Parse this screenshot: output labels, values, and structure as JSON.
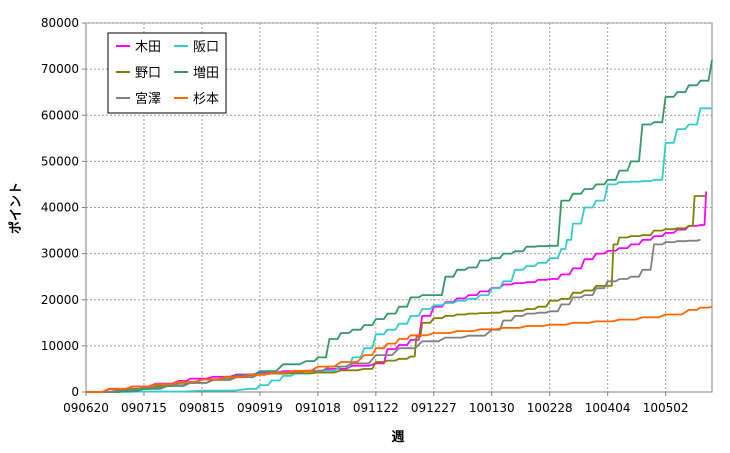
{
  "chart_data": {
    "type": "line",
    "title": "",
    "xlabel": "週",
    "ylabel": "ポイント",
    "ylim": [
      0,
      80000
    ],
    "yticks": [
      0,
      10000,
      20000,
      30000,
      40000,
      50000,
      60000,
      70000,
      80000
    ],
    "xlim": [
      0,
      54
    ],
    "x_tick_labels": [
      "090620",
      "090715",
      "090815",
      "090919",
      "091018",
      "091122",
      "091227",
      "100130",
      "100228",
      "100404",
      "100502"
    ],
    "x_tick_positions": [
      0,
      5,
      10,
      15,
      20,
      25,
      30,
      35,
      40,
      45,
      50
    ],
    "grid": true,
    "legend_position": "top-left",
    "series": [
      {
        "name": "木田",
        "color": "#ff00ff",
        "points": [
          [
            0,
            0
          ],
          [
            2,
            600
          ],
          [
            4,
            1200
          ],
          [
            6,
            1800
          ],
          [
            8,
            2400
          ],
          [
            9,
            2900
          ],
          [
            11,
            3300
          ],
          [
            13,
            3800
          ],
          [
            15,
            4200
          ],
          [
            17,
            4500
          ],
          [
            19,
            4600
          ],
          [
            21,
            5000
          ],
          [
            23,
            5700
          ],
          [
            25,
            6200
          ],
          [
            26,
            9300
          ],
          [
            27,
            10200
          ],
          [
            28,
            11300
          ],
          [
            29,
            16500
          ],
          [
            30,
            18500
          ],
          [
            31,
            19500
          ],
          [
            32,
            20300
          ],
          [
            33,
            21000
          ],
          [
            34,
            21800
          ],
          [
            35,
            22600
          ],
          [
            36,
            23300
          ],
          [
            37,
            23600
          ],
          [
            38,
            23800
          ],
          [
            39,
            24300
          ],
          [
            40,
            24500
          ],
          [
            41,
            25500
          ],
          [
            42,
            26800
          ],
          [
            43,
            28800
          ],
          [
            44,
            30000
          ],
          [
            45,
            30600
          ],
          [
            46,
            31200
          ],
          [
            47,
            32000
          ],
          [
            48,
            33000
          ],
          [
            49,
            33800
          ],
          [
            50,
            34500
          ],
          [
            51,
            35200
          ],
          [
            52,
            36000
          ],
          [
            53,
            36200
          ],
          [
            53.5,
            43500
          ]
        ]
      },
      {
        "name": "阪口",
        "color": "#33cccc",
        "points": [
          [
            0,
            0
          ],
          [
            5,
            100
          ],
          [
            10,
            300
          ],
          [
            14,
            700
          ],
          [
            15,
            1500
          ],
          [
            16,
            2500
          ],
          [
            17,
            3500
          ],
          [
            18,
            4000
          ],
          [
            20,
            4600
          ],
          [
            22,
            5500
          ],
          [
            23,
            7500
          ],
          [
            24,
            9500
          ],
          [
            25,
            12500
          ],
          [
            26,
            13500
          ],
          [
            27,
            14800
          ],
          [
            28,
            16500
          ],
          [
            29,
            18000
          ],
          [
            30,
            18800
          ],
          [
            31,
            19300
          ],
          [
            32,
            19800
          ],
          [
            33,
            20200
          ],
          [
            34,
            21000
          ],
          [
            35,
            22500
          ],
          [
            36,
            24000
          ],
          [
            37,
            26500
          ],
          [
            38,
            27300
          ],
          [
            39,
            28000
          ],
          [
            40,
            29000
          ],
          [
            41,
            31000
          ],
          [
            41.5,
            33000
          ],
          [
            42,
            36500
          ],
          [
            43,
            40000
          ],
          [
            44,
            41500
          ],
          [
            45,
            45000
          ],
          [
            46,
            45500
          ],
          [
            47,
            45600
          ],
          [
            48,
            45700
          ],
          [
            49,
            46000
          ],
          [
            50,
            54000
          ],
          [
            51,
            57000
          ],
          [
            52,
            58000
          ],
          [
            53,
            61500
          ],
          [
            54,
            61500
          ]
        ]
      },
      {
        "name": "野口",
        "color": "#808000",
        "points": [
          [
            0,
            0
          ],
          [
            4,
            700
          ],
          [
            6,
            1300
          ],
          [
            8,
            2000
          ],
          [
            10,
            2700
          ],
          [
            12,
            3300
          ],
          [
            14,
            3800
          ],
          [
            16,
            4000
          ],
          [
            18,
            4100
          ],
          [
            20,
            4200
          ],
          [
            22,
            4700
          ],
          [
            24,
            5000
          ],
          [
            25,
            6500
          ],
          [
            26,
            6800
          ],
          [
            27,
            7200
          ],
          [
            28,
            7700
          ],
          [
            28.5,
            12000
          ],
          [
            29,
            15000
          ],
          [
            30,
            16000
          ],
          [
            31,
            16500
          ],
          [
            32,
            16800
          ],
          [
            33,
            17000
          ],
          [
            34,
            17100
          ],
          [
            35,
            17200
          ],
          [
            36,
            17500
          ],
          [
            37,
            17600
          ],
          [
            38,
            18000
          ],
          [
            39,
            18500
          ],
          [
            40,
            19800
          ],
          [
            41,
            20200
          ],
          [
            42,
            21500
          ],
          [
            43,
            22000
          ],
          [
            44,
            23000
          ],
          [
            45,
            23000
          ],
          [
            45.5,
            32000
          ],
          [
            46,
            33500
          ],
          [
            47,
            33800
          ],
          [
            48,
            34000
          ],
          [
            49,
            35000
          ],
          [
            50,
            35300
          ],
          [
            51,
            35500
          ],
          [
            52,
            36000
          ],
          [
            52.5,
            42500
          ],
          [
            53.5,
            42500
          ]
        ]
      },
      {
        "name": "増田",
        "color": "#339966",
        "points": [
          [
            0,
            0
          ],
          [
            3,
            200
          ],
          [
            5,
            700
          ],
          [
            7,
            1300
          ],
          [
            9,
            2000
          ],
          [
            11,
            2800
          ],
          [
            13,
            3600
          ],
          [
            15,
            4500
          ],
          [
            17,
            6000
          ],
          [
            19,
            6700
          ],
          [
            20,
            7500
          ],
          [
            21,
            11500
          ],
          [
            22,
            12800
          ],
          [
            23,
            13500
          ],
          [
            24,
            14500
          ],
          [
            25,
            15800
          ],
          [
            26,
            17000
          ],
          [
            27,
            18500
          ],
          [
            28,
            20500
          ],
          [
            29,
            21000
          ],
          [
            30,
            21000
          ],
          [
            31,
            25000
          ],
          [
            32,
            26500
          ],
          [
            33,
            27000
          ],
          [
            34,
            28500
          ],
          [
            35,
            29000
          ],
          [
            36,
            30000
          ],
          [
            37,
            30500
          ],
          [
            38,
            31500
          ],
          [
            39,
            31600
          ],
          [
            40,
            31700
          ],
          [
            41,
            41500
          ],
          [
            42,
            43000
          ],
          [
            43,
            44000
          ],
          [
            44,
            45000
          ],
          [
            45,
            46000
          ],
          [
            46,
            48000
          ],
          [
            47,
            50000
          ],
          [
            48,
            58000
          ],
          [
            49,
            58500
          ],
          [
            50,
            64000
          ],
          [
            51,
            65000
          ],
          [
            52,
            66500
          ],
          [
            53,
            67500
          ],
          [
            54,
            72000
          ]
        ]
      },
      {
        "name": "宮澤",
        "color": "#808080",
        "points": [
          [
            0,
            0
          ],
          [
            3,
            500
          ],
          [
            5,
            1000
          ],
          [
            7,
            1500
          ],
          [
            9,
            2000
          ],
          [
            11,
            2600
          ],
          [
            13,
            3200
          ],
          [
            15,
            4000
          ],
          [
            17,
            4300
          ],
          [
            19,
            4600
          ],
          [
            21,
            5500
          ],
          [
            23,
            6200
          ],
          [
            25,
            8000
          ],
          [
            27,
            9500
          ],
          [
            29,
            11000
          ],
          [
            31,
            11800
          ],
          [
            33,
            12200
          ],
          [
            35,
            13500
          ],
          [
            36,
            15500
          ],
          [
            37,
            16500
          ],
          [
            38,
            17000
          ],
          [
            39,
            17200
          ],
          [
            40,
            17500
          ],
          [
            41,
            19000
          ],
          [
            42,
            20500
          ],
          [
            43,
            21000
          ],
          [
            44,
            22500
          ],
          [
            45,
            24000
          ],
          [
            46,
            24500
          ],
          [
            47,
            25000
          ],
          [
            48,
            26500
          ],
          [
            49,
            32000
          ],
          [
            50,
            32500
          ],
          [
            51,
            32700
          ],
          [
            52,
            32800
          ],
          [
            53,
            33000
          ]
        ]
      },
      {
        "name": "杉本",
        "color": "#ff6600",
        "points": [
          [
            0,
            0
          ],
          [
            2,
            700
          ],
          [
            4,
            1200
          ],
          [
            6,
            1700
          ],
          [
            8,
            2200
          ],
          [
            10,
            2700
          ],
          [
            12,
            3200
          ],
          [
            14,
            3700
          ],
          [
            16,
            4200
          ],
          [
            18,
            4600
          ],
          [
            20,
            5500
          ],
          [
            22,
            6500
          ],
          [
            24,
            8000
          ],
          [
            25,
            9500
          ],
          [
            26,
            10500
          ],
          [
            27,
            11500
          ],
          [
            28,
            12300
          ],
          [
            30,
            12800
          ],
          [
            32,
            13200
          ],
          [
            34,
            13600
          ],
          [
            36,
            13900
          ],
          [
            38,
            14300
          ],
          [
            40,
            14600
          ],
          [
            42,
            15000
          ],
          [
            44,
            15300
          ],
          [
            46,
            15700
          ],
          [
            48,
            16200
          ],
          [
            50,
            16800
          ],
          [
            52,
            17800
          ],
          [
            53,
            18300
          ],
          [
            54,
            18500
          ]
        ]
      }
    ]
  }
}
